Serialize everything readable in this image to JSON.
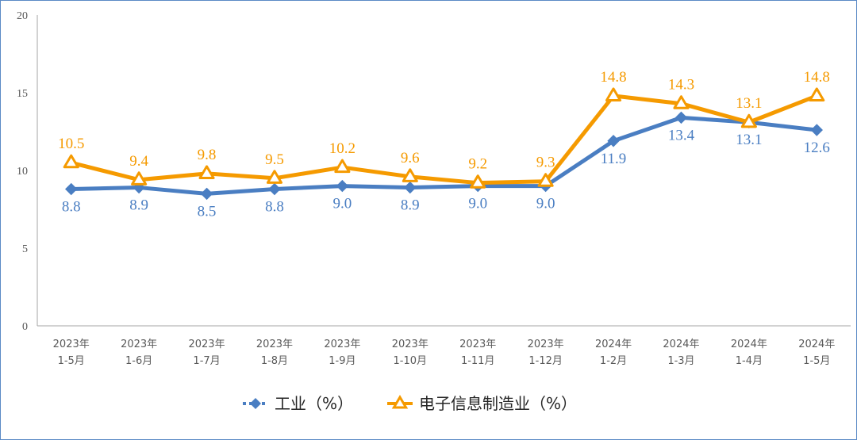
{
  "chart_data": {
    "type": "line",
    "title": "",
    "xlabel": "",
    "ylabel": "",
    "ylim": [
      0,
      20
    ],
    "yticks": [
      "0",
      "5",
      "10",
      "15",
      "20"
    ],
    "grid": false,
    "legend_position": "bottom",
    "categories": [
      [
        "2023年",
        "1-5月"
      ],
      [
        "2023年",
        "1-6月"
      ],
      [
        "2023年",
        "1-7月"
      ],
      [
        "2023年",
        "1-8月"
      ],
      [
        "2023年",
        "1-9月"
      ],
      [
        "2023年",
        "1-10月"
      ],
      [
        "2023年",
        "1-11月"
      ],
      [
        "2023年",
        "1-12月"
      ],
      [
        "2024年",
        "1-2月"
      ],
      [
        "2024年",
        "1-3月"
      ],
      [
        "2024年",
        "1-4月"
      ],
      [
        "2024年",
        "1-5月"
      ]
    ],
    "series": [
      {
        "name": "工业（%）",
        "color": "#4a7ec2",
        "marker": "diamond",
        "values": [
          8.8,
          8.9,
          8.5,
          8.8,
          9.0,
          8.9,
          9.0,
          9.0,
          11.9,
          13.4,
          13.1,
          12.6
        ],
        "labels": [
          "8.8",
          "8.9",
          "8.5",
          "8.8",
          "9.0",
          "8.9",
          "9.0",
          "9.0",
          "11.9",
          "13.4",
          "13.1",
          "12.6"
        ]
      },
      {
        "name": "电子信息制造业（%）",
        "color": "#f59a00",
        "marker": "triangle",
        "values": [
          10.5,
          9.4,
          9.8,
          9.5,
          10.2,
          9.6,
          9.2,
          9.3,
          14.8,
          14.3,
          13.1,
          14.8
        ],
        "labels": [
          "10.5",
          "9.4",
          "9.8",
          "9.5",
          "10.2",
          "9.6",
          "9.2",
          "9.3",
          "14.8",
          "14.3",
          "13.1",
          "14.8"
        ]
      }
    ]
  }
}
